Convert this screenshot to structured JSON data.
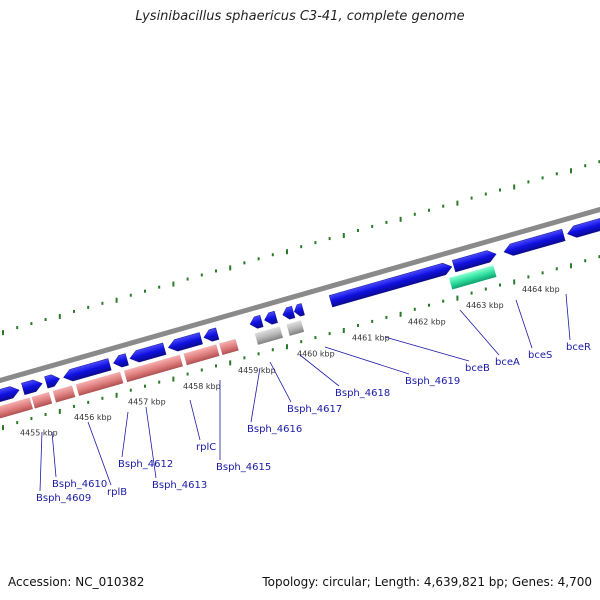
{
  "title": "Lysinibacillus sphaericus C3-41, complete genome",
  "footer": {
    "accession": "Accession: NC_010382",
    "stats": "Topology: circular; Length: 4,639,821 bp; Genes: 4,700"
  },
  "colors": {
    "backbone": "#8a8a8a",
    "cds_forward": "#1010e0",
    "cds_reverse": "#e08080",
    "rna": "#30e0a0",
    "pseudo": "#b8b8b8",
    "tick": "#2a7a2a",
    "label": "#1a1aa6"
  },
  "kbp_ticks": [
    "4455 kbp",
    "4456 kbp",
    "4457 kbp",
    "4458 kbp",
    "4459 kbp",
    "4460 kbp",
    "4461 kbp",
    "4462 kbp",
    "4463 kbp",
    "4464 kbp"
  ],
  "gene_labels": [
    "Bsph_4609",
    "Bsph_4610",
    "rplB",
    "Bsph_4612",
    "Bsph_4613",
    "rplC",
    "Bsph_4615",
    "Bsph_4616",
    "Bsph_4617",
    "Bsph_4618",
    "Bsph_4619",
    "bceB",
    "bceA",
    "bceS",
    "bceR"
  ]
}
